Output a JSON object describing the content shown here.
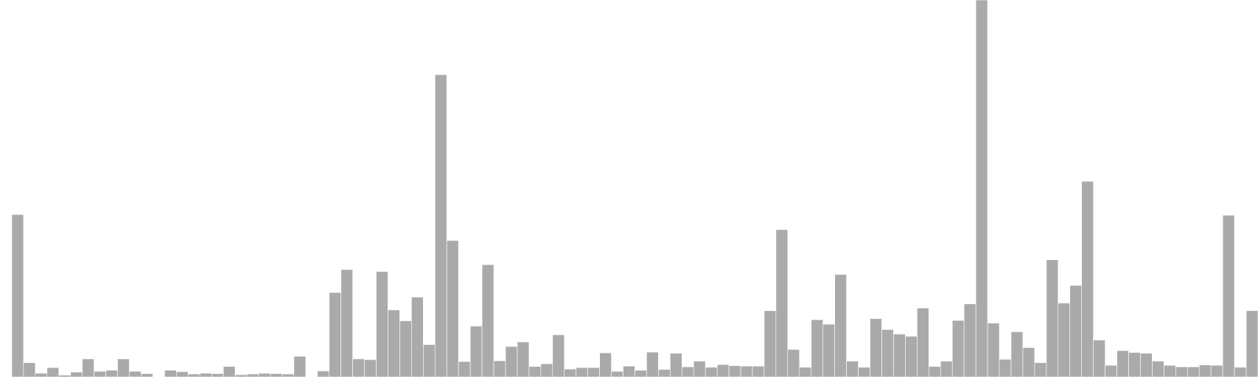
{
  "chart_data": {
    "type": "bar",
    "title": "",
    "xlabel": "",
    "ylabel": "",
    "ylim": [
      0,
      100
    ],
    "grid": false,
    "legend": "none",
    "bar_color": "#aaaaaa",
    "bar_edge_color": "#ffffff",
    "values": [
      0,
      43.1,
      3.8,
      1.0,
      2.5,
      0.5,
      1.3,
      4.8,
      1.5,
      1.8,
      4.8,
      1.5,
      0.9,
      0,
      1.8,
      1.4,
      0.8,
      1.0,
      0.9,
      2.8,
      0.6,
      0.8,
      1.0,
      0.9,
      0.8,
      5.5,
      0,
      1.6,
      22.4,
      28.5,
      4.8,
      4.6,
      28.0,
      17.8,
      14.9,
      21.2,
      8.6,
      80.2,
      36.2,
      4.1,
      13.5,
      29.8,
      4.3,
      8.1,
      9.3,
      2.8,
      3.5,
      11.2,
      2.1,
      2.5,
      2.5,
      6.4,
      1.5,
      2.9,
      1.8,
      6.6,
      2.0,
      6.3,
      2.7,
      4.2,
      2.6,
      3.3,
      3.0,
      2.9,
      2.9,
      17.6,
      39.1,
      7.3,
      2.6,
      15.2,
      14.0,
      27.2,
      4.2,
      2.6,
      15.5,
      12.6,
      11.4,
      10.8,
      18.3,
      2.8,
      4.2,
      15.0,
      19.4,
      100.0,
      14.3,
      4.7,
      12.0,
      7.8,
      3.8,
      31.1,
      19.6,
      24.3,
      51.9,
      9.8,
      3.1,
      7.0,
      6.5,
      6.3,
      4.2,
      3.1,
      2.7,
      2.7,
      3.2,
      3.1,
      42.9,
      2.6,
      17.6
    ]
  }
}
